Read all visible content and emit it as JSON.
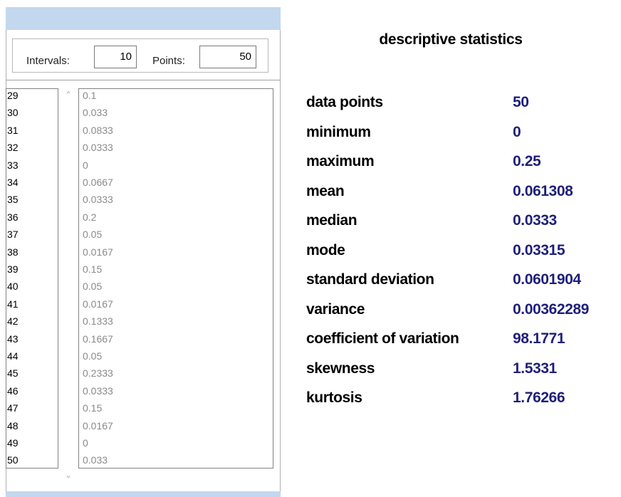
{
  "controls": {
    "intervals_label": "Intervals:",
    "intervals_value": "10",
    "points_label": "Points:",
    "points_value": "50"
  },
  "list": {
    "rows": [
      [
        "29",
        "0.1"
      ],
      [
        "30",
        "0.033"
      ],
      [
        "31",
        "0.0833"
      ],
      [
        "32",
        "0.0333"
      ],
      [
        "33",
        "0"
      ],
      [
        "34",
        "0.0667"
      ],
      [
        "35",
        "0.0333"
      ],
      [
        "36",
        "0.2"
      ],
      [
        "37",
        "0.05"
      ],
      [
        "38",
        "0.0167"
      ],
      [
        "39",
        "0.15"
      ],
      [
        "40",
        "0.05"
      ],
      [
        "41",
        "0.0167"
      ],
      [
        "42",
        "0.1333"
      ],
      [
        "43",
        "0.1667"
      ],
      [
        "44",
        "0.05"
      ],
      [
        "45",
        "0.2333"
      ],
      [
        "46",
        "0.0333"
      ],
      [
        "47",
        "0.15"
      ],
      [
        "48",
        "0.0167"
      ],
      [
        "49",
        "0"
      ],
      [
        "50",
        "0.033"
      ]
    ]
  },
  "statistics": {
    "title": "descriptive statistics",
    "rows": [
      [
        "data points",
        "50"
      ],
      [
        "minimum",
        "0"
      ],
      [
        "maximum",
        "0.25"
      ],
      [
        "mean",
        "0.061308"
      ],
      [
        "median",
        "0.0333"
      ],
      [
        "mode",
        "0.03315"
      ],
      [
        "standard deviation",
        "0.0601904"
      ],
      [
        "variance",
        "0.00362289"
      ],
      [
        "coefficient of variation",
        "98.1771"
      ],
      [
        "skewness",
        "1.5331"
      ],
      [
        "kurtosis",
        "1.76266"
      ]
    ]
  }
}
